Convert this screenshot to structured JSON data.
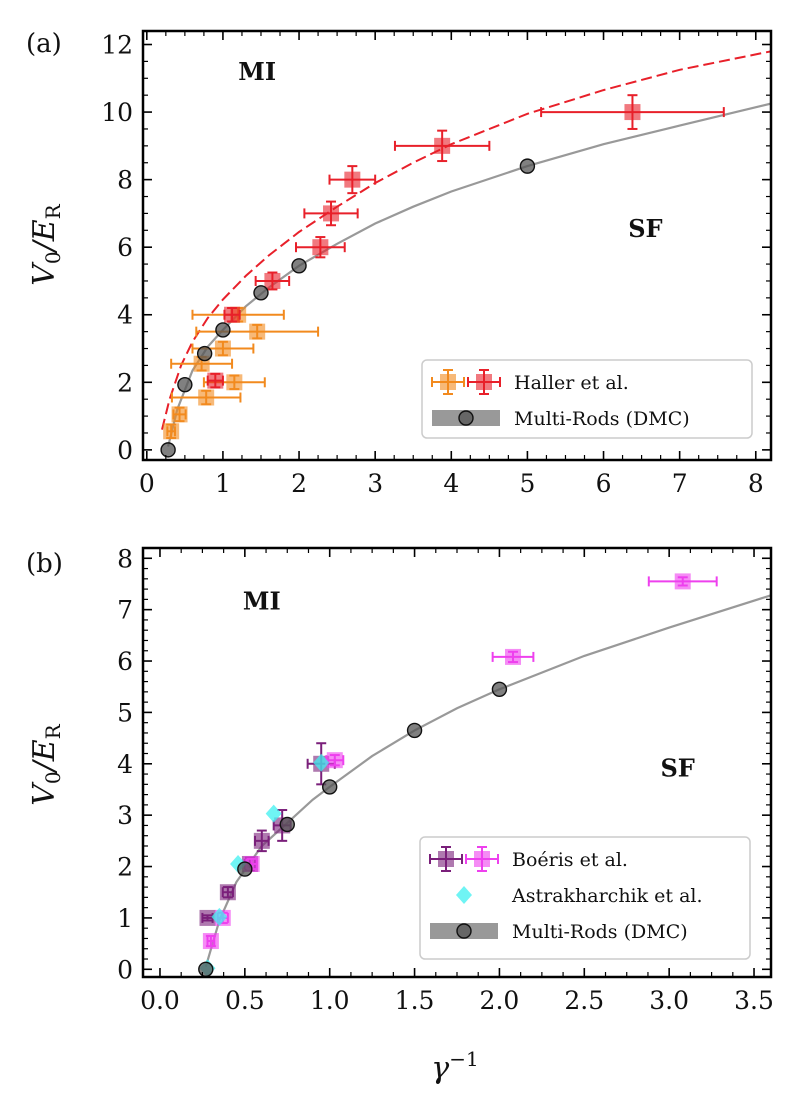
{
  "chart_data": [
    {
      "panel": "(a)",
      "type": "scatter",
      "xlim": [
        -0.05,
        8.2
      ],
      "ylim": [
        -0.3,
        12.4
      ],
      "xticks": [
        0,
        1,
        2,
        3,
        4,
        5,
        6,
        7,
        8
      ],
      "yticks": [
        0,
        2,
        4,
        6,
        8,
        10,
        12
      ],
      "ylabel": "V0/ER",
      "xlabel": "",
      "region_labels": [
        {
          "text": "MI",
          "x": 1.45,
          "y": 10.95
        },
        {
          "text": "SF",
          "x": 6.55,
          "y": 6.3
        }
      ],
      "series": [
        {
          "name": "Haller et al. (orange)",
          "color": "#f28a1e",
          "marker": "square",
          "points": [
            {
              "x": 0.32,
              "y": 0.55,
              "xerr": 0.05,
              "yerr": 0.2
            },
            {
              "x": 0.43,
              "y": 1.05,
              "xerr": 0.08,
              "yerr": 0.2
            },
            {
              "x": 0.78,
              "y": 1.55,
              "xerr": 0.45,
              "yerr": 0.2
            },
            {
              "x": 1.15,
              "y": 2.0,
              "xerr": 0.4,
              "yerr": 0.2
            },
            {
              "x": 0.72,
              "y": 2.55,
              "xerr": 0.4,
              "yerr": 0.2
            },
            {
              "x": 1.0,
              "y": 3.0,
              "xerr": 0.4,
              "yerr": 0.2
            },
            {
              "x": 1.45,
              "y": 3.5,
              "xerr": 0.8,
              "yerr": 0.2
            },
            {
              "x": 1.2,
              "y": 4.0,
              "xerr": 0.6,
              "yerr": 0.2
            }
          ]
        },
        {
          "name": "Haller et al. (red)",
          "color": "#e8202a",
          "marker": "square",
          "points": [
            {
              "x": 0.9,
              "y": 2.05,
              "xerr": 0.1,
              "yerr": 0.2
            },
            {
              "x": 1.12,
              "y": 4.0,
              "xerr": 0.1,
              "yerr": 0.2
            },
            {
              "x": 1.65,
              "y": 5.0,
              "xerr": 0.22,
              "yerr": 0.25
            },
            {
              "x": 2.28,
              "y": 6.0,
              "xerr": 0.32,
              "yerr": 0.3
            },
            {
              "x": 2.42,
              "y": 7.0,
              "xerr": 0.35,
              "yerr": 0.35
            },
            {
              "x": 2.7,
              "y": 8.0,
              "xerr": 0.3,
              "yerr": 0.4
            },
            {
              "x": 3.88,
              "y": 9.0,
              "xerr": 0.62,
              "yerr": 0.45
            },
            {
              "x": 6.38,
              "y": 10.0,
              "xerr": 1.2,
              "yerr": 0.5
            }
          ]
        },
        {
          "name": "Multi-Rods (DMC)",
          "color": "#555555",
          "marker": "circle",
          "points": [
            {
              "x": 0.28,
              "y": 0.0
            },
            {
              "x": 0.5,
              "y": 1.93
            },
            {
              "x": 0.76,
              "y": 2.85
            },
            {
              "x": 1.0,
              "y": 3.55
            },
            {
              "x": 1.5,
              "y": 4.65
            },
            {
              "x": 2.0,
              "y": 5.45
            },
            {
              "x": 5.0,
              "y": 8.4
            }
          ]
        }
      ],
      "curves": [
        {
          "name": "DMC fit",
          "color": "#999999",
          "style": "solid",
          "x": [
            0.28,
            0.4,
            0.6,
            0.8,
            1.0,
            1.3,
            1.6,
            2.0,
            2.5,
            3.0,
            3.5,
            4.0,
            5.0,
            6.0,
            7.0,
            8.2
          ],
          "y": [
            0.1,
            1.2,
            2.35,
            3.05,
            3.55,
            4.25,
            4.8,
            5.45,
            6.1,
            6.7,
            7.2,
            7.65,
            8.4,
            9.05,
            9.6,
            10.25
          ]
        },
        {
          "name": "red dashed",
          "color": "#e8202a",
          "style": "dashed",
          "x": [
            0.2,
            0.3,
            0.45,
            0.6,
            0.8,
            1.0,
            1.3,
            1.6,
            2.0,
            2.5,
            3.0,
            3.5,
            4.0,
            5.0,
            6.0,
            7.0,
            8.2
          ],
          "y": [
            0.6,
            1.5,
            2.5,
            3.2,
            3.9,
            4.45,
            5.15,
            5.75,
            6.45,
            7.2,
            7.9,
            8.5,
            9.05,
            9.95,
            10.65,
            11.25,
            11.8
          ]
        }
      ],
      "legend": {
        "position": "lower-right",
        "entries": [
          {
            "label": "Haller et al."
          },
          {
            "label": "Multi-Rods (DMC)"
          }
        ]
      }
    },
    {
      "panel": "(b)",
      "type": "scatter",
      "xlim": [
        -0.1,
        3.6
      ],
      "ylim": [
        -0.15,
        8.2
      ],
      "xticks": [
        0.0,
        0.5,
        1.0,
        1.5,
        2.0,
        2.5,
        3.0,
        3.5
      ],
      "xticklabels": [
        "0.0",
        "0.5",
        "1.0",
        "1.5",
        "2.0",
        "2.5",
        "3.0",
        "3.5"
      ],
      "yticks": [
        0,
        1,
        2,
        3,
        4,
        5,
        6,
        7,
        8
      ],
      "ylabel": "V0/ER",
      "xlabel": "γ-1",
      "region_labels": [
        {
          "text": "MI",
          "x": 0.6,
          "y": 7.0
        },
        {
          "text": "SF",
          "x": 3.05,
          "y": 3.75
        }
      ],
      "series": [
        {
          "name": "Boéris et al. (purple)",
          "color": "#7a1f7a",
          "marker": "square",
          "points": [
            {
              "x": 0.28,
              "y": 1.0,
              "xerr": 0.03,
              "yerr": 0.05
            },
            {
              "x": 0.4,
              "y": 1.5,
              "xerr": 0.03,
              "yerr": 0.1
            },
            {
              "x": 0.53,
              "y": 2.05,
              "xerr": 0.03,
              "yerr": 0.12
            },
            {
              "x": 0.6,
              "y": 2.5,
              "xerr": 0.04,
              "yerr": 0.2
            },
            {
              "x": 0.72,
              "y": 2.8,
              "xerr": 0.05,
              "yerr": 0.3
            },
            {
              "x": 0.95,
              "y": 4.0,
              "xerr": 0.08,
              "yerr": 0.4
            }
          ]
        },
        {
          "name": "Boéris et al. (magenta)",
          "color": "#ee40ee",
          "marker": "square",
          "points": [
            {
              "x": 0.3,
              "y": 0.55,
              "xerr": 0.02,
              "yerr": 0.1
            },
            {
              "x": 0.37,
              "y": 1.0,
              "xerr": 0.03,
              "yerr": 0.1
            },
            {
              "x": 0.54,
              "y": 2.05,
              "xerr": 0.03,
              "yerr": 0.1
            },
            {
              "x": 1.03,
              "y": 4.07,
              "xerr": 0.05,
              "yerr": 0.1
            },
            {
              "x": 2.08,
              "y": 6.08,
              "xerr": 0.12,
              "yerr": 0.1
            },
            {
              "x": 3.08,
              "y": 7.55,
              "xerr": 0.2,
              "yerr": 0.08
            }
          ]
        },
        {
          "name": "Astrakharchik et al.",
          "color": "#3ff0f0",
          "marker": "diamond",
          "points": [
            {
              "x": 0.28,
              "y": 0.02
            },
            {
              "x": 0.35,
              "y": 1.02
            },
            {
              "x": 0.46,
              "y": 2.05
            },
            {
              "x": 0.67,
              "y": 3.03
            },
            {
              "x": 0.95,
              "y": 4.02
            }
          ]
        },
        {
          "name": "Multi-Rods (DMC)",
          "color": "#555555",
          "marker": "circle",
          "points": [
            {
              "x": 0.27,
              "y": 0.0
            },
            {
              "x": 0.5,
              "y": 1.95
            },
            {
              "x": 0.75,
              "y": 2.82
            },
            {
              "x": 1.0,
              "y": 3.55
            },
            {
              "x": 1.5,
              "y": 4.65
            },
            {
              "x": 2.0,
              "y": 5.45
            }
          ]
        }
      ],
      "curves": [
        {
          "name": "DMC fit",
          "color": "#999999",
          "style": "solid",
          "x": [
            0.27,
            0.35,
            0.45,
            0.6,
            0.75,
            0.9,
            1.0,
            1.25,
            1.5,
            1.75,
            2.0,
            2.5,
            3.0,
            3.6
          ],
          "y": [
            0.05,
            0.95,
            1.7,
            2.4,
            2.85,
            3.3,
            3.55,
            4.15,
            4.65,
            5.08,
            5.45,
            6.1,
            6.65,
            7.28
          ]
        }
      ],
      "legend": {
        "position": "lower-right",
        "entries": [
          {
            "label": "Boéris et al."
          },
          {
            "label": "Astrakharchik et al."
          },
          {
            "label": "Multi-Rods (DMC)"
          }
        ]
      }
    }
  ]
}
